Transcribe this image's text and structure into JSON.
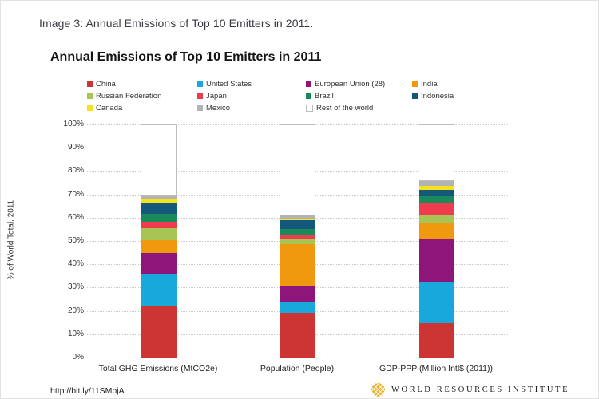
{
  "page": {
    "caption": "Image 3: Annual Emissions of Top 10 Emitters in 2011.",
    "footer_link": "http://bit.ly/11SMpjA",
    "brand": "WORLD RESOURCES INSTITUTE"
  },
  "chart_data": {
    "type": "bar",
    "stacked": true,
    "title": "Annual Emissions of Top 10 Emitters in 2011",
    "ylabel": "% of World Total, 2011",
    "ylim": [
      0,
      100
    ],
    "ytick_step": 10,
    "ytick_suffix": "%",
    "grid": true,
    "legend_position": "top",
    "categories": [
      "Total GHG Emissions (MtCO2e)",
      "Population (People)",
      "GDP-PPP (Million Intl$ (2011))"
    ],
    "series": [
      {
        "name": "China",
        "color": "#CD3534",
        "values": [
          22.4,
          19.2,
          14.8
        ]
      },
      {
        "name": "United States",
        "color": "#19A8DB",
        "values": [
          13.5,
          4.5,
          17.4
        ]
      },
      {
        "name": "European Union (28)",
        "color": "#8E1579",
        "values": [
          9.0,
          7.2,
          19.0
        ]
      },
      {
        "name": "India",
        "color": "#F0990F",
        "values": [
          5.5,
          17.8,
          6.2
        ]
      },
      {
        "name": "Russian Federation",
        "color": "#A8C455",
        "values": [
          5.2,
          2.0,
          4.0
        ]
      },
      {
        "name": "Japan",
        "color": "#EE3B4D",
        "values": [
          2.8,
          1.8,
          4.9
        ]
      },
      {
        "name": "Brazil",
        "color": "#1B8A5A",
        "values": [
          3.3,
          2.8,
          3.1
        ]
      },
      {
        "name": "Indonesia",
        "color": "#14587C",
        "values": [
          4.3,
          3.5,
          2.6
        ]
      },
      {
        "name": "Canada",
        "color": "#F5E11E",
        "values": [
          1.9,
          0.5,
          1.5
        ]
      },
      {
        "name": "Mexico",
        "color": "#B3B3B3",
        "values": [
          1.8,
          1.7,
          2.1
        ]
      },
      {
        "name": "Rest of the world",
        "color": "#FFFFFF",
        "border": "#BDBDBD",
        "values": [
          30.3,
          39.0,
          24.4
        ]
      }
    ]
  }
}
